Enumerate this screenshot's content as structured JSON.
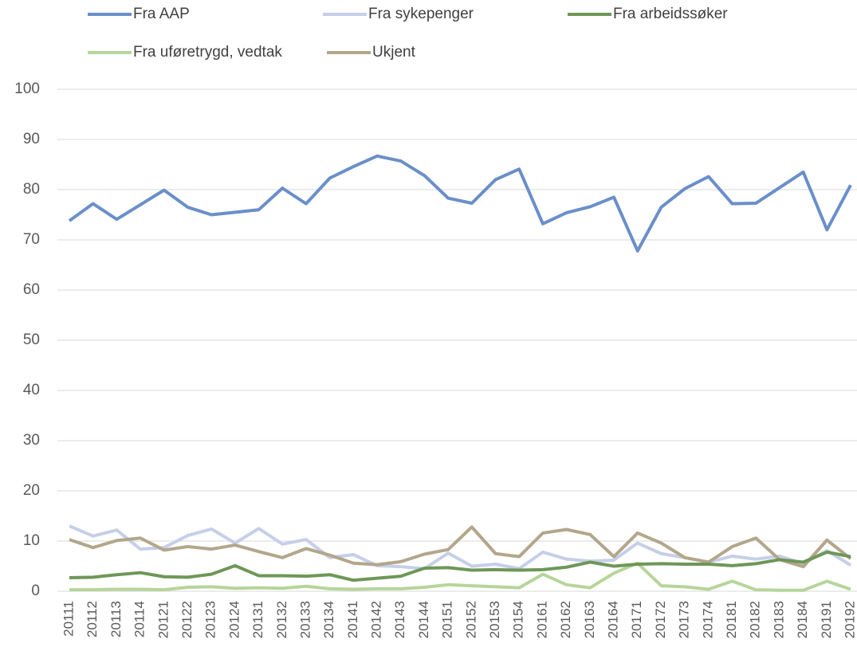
{
  "chart_data": {
    "type": "line",
    "categories": [
      "20111",
      "20112",
      "20113",
      "20114",
      "20121",
      "20122",
      "20123",
      "20124",
      "20131",
      "20132",
      "20133",
      "20134",
      "20141",
      "20142",
      "20143",
      "20144",
      "20151",
      "20152",
      "20153",
      "20154",
      "20161",
      "20162",
      "20163",
      "20164",
      "20171",
      "20172",
      "20173",
      "20174",
      "20181",
      "20182",
      "20183",
      "20184",
      "20191",
      "20192"
    ],
    "series": [
      {
        "name": "Fra AAP",
        "color": "#6a8fc9",
        "values": [
          73.8,
          77.2,
          74.1,
          77.0,
          79.9,
          76.5,
          75.0,
          75.5,
          76.0,
          80.3,
          77.2,
          82.3,
          84.6,
          86.7,
          85.7,
          82.8,
          78.3,
          77.3,
          82.0,
          84.1,
          73.2,
          75.4,
          76.6,
          78.5,
          67.8,
          76.5,
          80.2,
          82.6,
          77.2,
          77.3,
          80.4,
          83.5,
          72.0,
          80.9
        ]
      },
      {
        "name": "Fra sykepenger",
        "color": "#c5cfe8",
        "values": [
          13.0,
          11.0,
          12.2,
          8.4,
          8.7,
          11.1,
          12.4,
          9.6,
          12.5,
          9.4,
          10.3,
          6.7,
          7.3,
          5.1,
          4.9,
          4.5,
          7.6,
          5.0,
          5.4,
          4.5,
          7.8,
          6.4,
          6.0,
          6.2,
          9.6,
          7.5,
          6.7,
          5.8,
          7.0,
          6.4,
          7.0,
          5.5,
          8.1,
          5.2
        ]
      },
      {
        "name": "Fra arbeidssøker",
        "color": "#6e9757",
        "values": [
          2.7,
          2.8,
          3.3,
          3.7,
          2.9,
          2.8,
          3.4,
          5.1,
          3.1,
          3.1,
          3.0,
          3.3,
          2.2,
          2.6,
          3.0,
          4.6,
          4.7,
          4.2,
          4.3,
          4.2,
          4.3,
          4.8,
          5.8,
          5.0,
          5.4,
          5.5,
          5.4,
          5.4,
          5.1,
          5.5,
          6.3,
          5.8,
          7.8,
          6.9
        ]
      },
      {
        "name": "Fra uføretrygd, vedtak",
        "color": "#b7d59a",
        "values": [
          0.3,
          0.3,
          0.4,
          0.4,
          0.3,
          0.8,
          0.9,
          0.6,
          0.7,
          0.6,
          1.0,
          0.5,
          0.4,
          0.5,
          0.5,
          0.8,
          1.3,
          1.1,
          0.9,
          0.7,
          3.4,
          1.3,
          0.7,
          3.6,
          5.6,
          1.1,
          0.9,
          0.4,
          2.0,
          0.3,
          0.2,
          0.2,
          2.0,
          0.4
        ]
      },
      {
        "name": "Ukjent",
        "color": "#b3a68b",
        "values": [
          10.3,
          8.7,
          10.1,
          10.6,
          8.2,
          8.9,
          8.4,
          9.2,
          7.9,
          6.7,
          8.5,
          7.2,
          5.6,
          5.3,
          5.9,
          7.4,
          8.3,
          12.8,
          7.5,
          6.9,
          11.6,
          12.3,
          11.3,
          6.9,
          11.6,
          9.6,
          6.7,
          5.8,
          8.9,
          10.6,
          6.3,
          4.9,
          10.2,
          6.5
        ]
      }
    ],
    "ylim": [
      0,
      100
    ],
    "yticks": [
      0,
      10,
      20,
      30,
      40,
      50,
      60,
      70,
      80,
      90,
      100
    ],
    "grid": true
  }
}
